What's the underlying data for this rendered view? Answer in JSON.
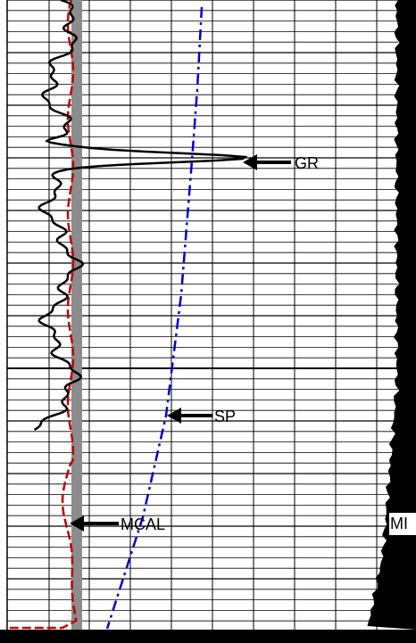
{
  "labels": {
    "gr": "GR",
    "sp": "SP",
    "mcal": "MCAL",
    "mi": "MI"
  }
}
